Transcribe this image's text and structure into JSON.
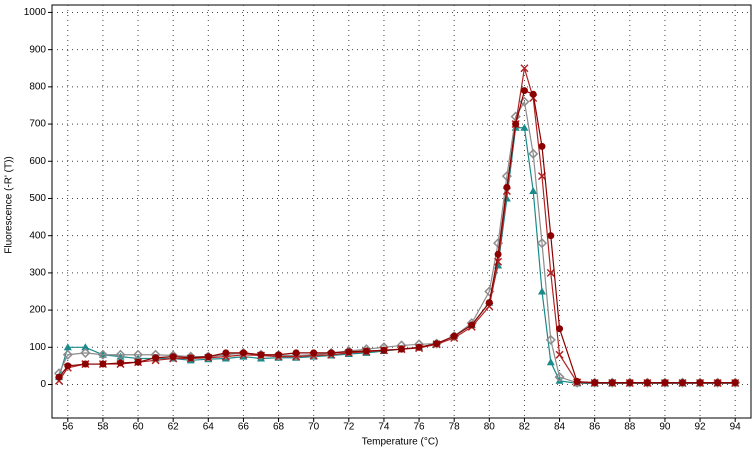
{
  "chart_data": {
    "type": "line",
    "x_label": "Temperature (°C)",
    "y_label": "Fluorescence (-R' (T))",
    "x": [
      55.5,
      56,
      57,
      58,
      59,
      60,
      61,
      62,
      63,
      64,
      65,
      66,
      67,
      68,
      69,
      70,
      71,
      72,
      73,
      74,
      75,
      76,
      77,
      78,
      79,
      80,
      80.5,
      81,
      81.5,
      82,
      82.5,
      83,
      83.5,
      84,
      85,
      86,
      87,
      88,
      89,
      90,
      91,
      92,
      93,
      94
    ],
    "series": [
      {
        "color": "#1a8a8a",
        "marker": "triangle",
        "values": [
          20,
          100,
          100,
          80,
          75,
          70,
          70,
          70,
          65,
          68,
          70,
          75,
          70,
          72,
          72,
          75,
          78,
          82,
          85,
          90,
          95,
          100,
          110,
          130,
          160,
          220,
          320,
          500,
          690,
          690,
          520,
          250,
          60,
          10,
          3,
          3,
          3,
          3,
          3,
          3,
          3,
          3,
          3,
          3
        ]
      },
      {
        "color": "#8c8c8c",
        "marker": "diamond",
        "values": [
          30,
          80,
          85,
          80,
          80,
          80,
          80,
          78,
          75,
          75,
          80,
          85,
          80,
          78,
          78,
          80,
          85,
          90,
          95,
          100,
          105,
          108,
          110,
          130,
          165,
          250,
          380,
          560,
          720,
          760,
          620,
          380,
          120,
          20,
          5,
          5,
          5,
          5,
          5,
          5,
          5,
          5,
          5,
          5
        ]
      },
      {
        "color": "#b22222",
        "marker": "cross",
        "values": [
          10,
          45,
          55,
          55,
          55,
          60,
          65,
          70,
          70,
          72,
          75,
          80,
          78,
          75,
          75,
          78,
          80,
          85,
          88,
          92,
          95,
          98,
          108,
          125,
          155,
          210,
          330,
          520,
          700,
          850,
          770,
          560,
          300,
          80,
          6,
          4,
          4,
          4,
          4,
          4,
          4,
          4,
          4,
          4
        ]
      },
      {
        "color": "#8b0000",
        "marker": "circle",
        "values": [
          20,
          50,
          55,
          55,
          58,
          60,
          72,
          75,
          72,
          75,
          85,
          85,
          80,
          80,
          85,
          85,
          85,
          88,
          90,
          92,
          95,
          100,
          110,
          130,
          160,
          220,
          350,
          530,
          700,
          790,
          780,
          640,
          400,
          150,
          8,
          5,
          5,
          5,
          5,
          5,
          5,
          5,
          5,
          5
        ]
      }
    ],
    "xlim": [
      55.1,
      94.9
    ],
    "xticks": [
      56,
      58,
      60,
      62,
      64,
      66,
      68,
      70,
      72,
      74,
      76,
      78,
      80,
      82,
      84,
      86,
      88,
      90,
      92,
      94
    ],
    "ylim": [
      -90,
      1020
    ],
    "yticks": [
      0,
      100,
      200,
      300,
      400,
      500,
      600,
      700,
      800,
      900,
      1000
    ],
    "grid": true
  }
}
